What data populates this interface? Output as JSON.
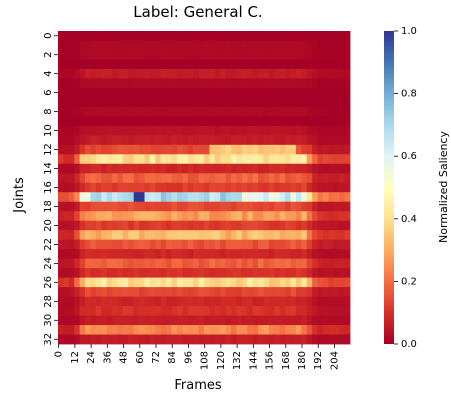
{
  "chart_data": {
    "type": "heatmap",
    "title": "Label: General C.",
    "xlabel": "Frames",
    "ylabel": "Joints",
    "colorbar_label": "Normalized Saliency",
    "colormap": "RdYlBu",
    "value_range": [
      0,
      1
    ],
    "x_ticks": [
      0,
      12,
      24,
      36,
      48,
      60,
      72,
      84,
      96,
      108,
      120,
      132,
      144,
      156,
      168,
      180,
      192,
      204
    ],
    "y_ticks": [
      0,
      2,
      4,
      6,
      8,
      10,
      12,
      14,
      16,
      18,
      20,
      22,
      24,
      26,
      28,
      30,
      32
    ],
    "colorbar_ticks": [
      "0.0",
      "0.2",
      "0.4",
      "0.6",
      "0.8",
      "1.0"
    ],
    "n_frames": 216,
    "n_joints": 33,
    "row_levels": [
      0.0,
      0.02,
      0.02,
      0.0,
      0.06,
      0.02,
      0.0,
      0.0,
      0.02,
      0.0,
      0.04,
      0.06,
      0.14,
      0.4,
      0.08,
      0.18,
      0.12,
      0.62,
      0.14,
      0.28,
      0.12,
      0.32,
      0.16,
      0.08,
      0.18,
      0.1,
      0.4,
      0.14,
      0.08,
      0.1,
      0.06,
      0.24,
      0.06
    ],
    "peak_cell": {
      "joint": 17,
      "frame": 58,
      "value": 1.0
    }
  }
}
